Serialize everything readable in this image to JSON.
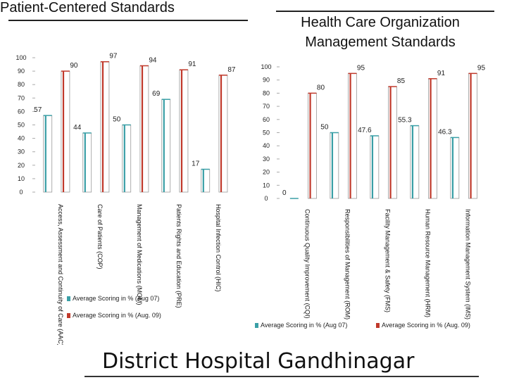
{
  "left_title": "Patient-Centered Standards",
  "right_title_line1": "Health Care Organization",
  "right_title_line2": "Management Standards",
  "footer": "District Hospital Gandhinagar",
  "colors": {
    "series1": "#3a9fa6",
    "series2": "#c0392b"
  },
  "chart_data": [
    {
      "type": "bar",
      "ylim": [
        0,
        100
      ],
      "yticks": [
        0,
        10,
        20,
        30,
        40,
        50,
        60,
        70,
        80,
        90,
        100
      ],
      "categories": [
        "Access, Assessment and Continuity of Care (AAC)",
        "Care of Patients (COP)",
        "Management of Medications (MOM)",
        "Patients Rights and Education (PRE)",
        "Hospital Infection Control (HIC)"
      ],
      "series": [
        {
          "name": "Average  Scoring in % (Aug 07)",
          "values": [
            57,
            44,
            50,
            69,
            17
          ]
        },
        {
          "name": "Average  Scoring in % (Aug. 09)",
          "values": [
            90,
            97,
            94,
            91,
            87
          ]
        }
      ]
    },
    {
      "type": "bar",
      "ylim": [
        0,
        100
      ],
      "yticks": [
        0,
        10,
        20,
        30,
        40,
        50,
        60,
        70,
        80,
        90,
        100
      ],
      "categories": [
        "Continuous Quality Improvement (CQI)",
        "Responsibilities of Management (ROM)",
        "Facility Management & Safety (FMS)",
        "Human Resource Management (HRM)",
        "Information Management System (IMS)"
      ],
      "series": [
        {
          "name": "Average  Scoring in % (Aug 07)",
          "values": [
            0,
            50,
            47.6,
            55.3,
            46.3
          ]
        },
        {
          "name": "Average  Scoring in % (Aug. 09)",
          "values": [
            80,
            95,
            85,
            91,
            95
          ]
        }
      ]
    }
  ]
}
